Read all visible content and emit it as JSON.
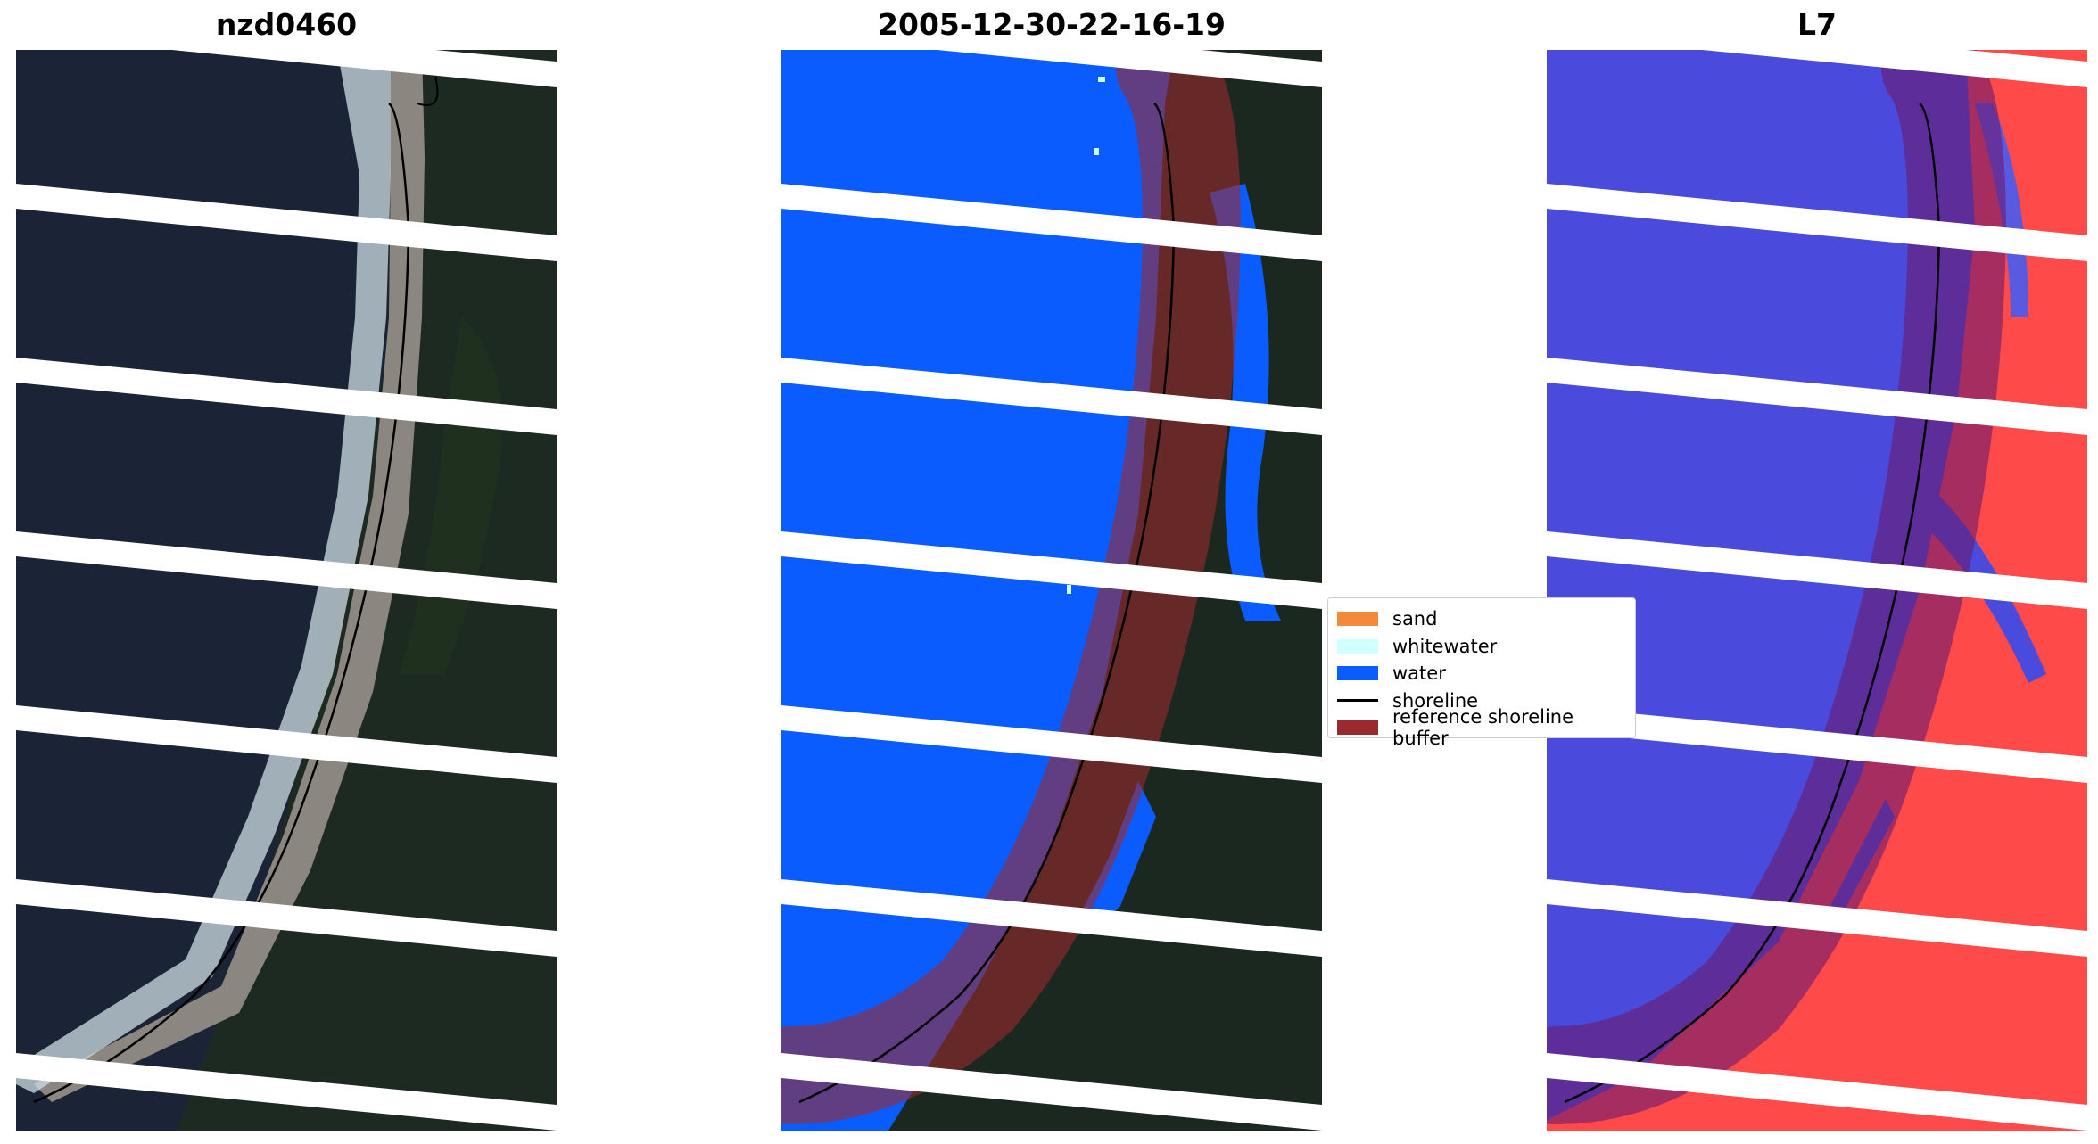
{
  "panels": [
    {
      "title": "nzd0460",
      "kind": "rgb"
    },
    {
      "title": "2005-12-30-22-16-19",
      "kind": "classified"
    },
    {
      "title": "L7",
      "kind": "index"
    }
  ],
  "legend": {
    "items": [
      {
        "label": "sand",
        "color": "#f28a3c"
      },
      {
        "label": "whitewater",
        "color": "#cfffff"
      },
      {
        "label": "water",
        "color": "#0a5cff"
      },
      {
        "label": "shoreline",
        "color": "#000000"
      },
      {
        "label": "reference shoreline buffer",
        "color": "#9b2a2e"
      }
    ]
  }
}
